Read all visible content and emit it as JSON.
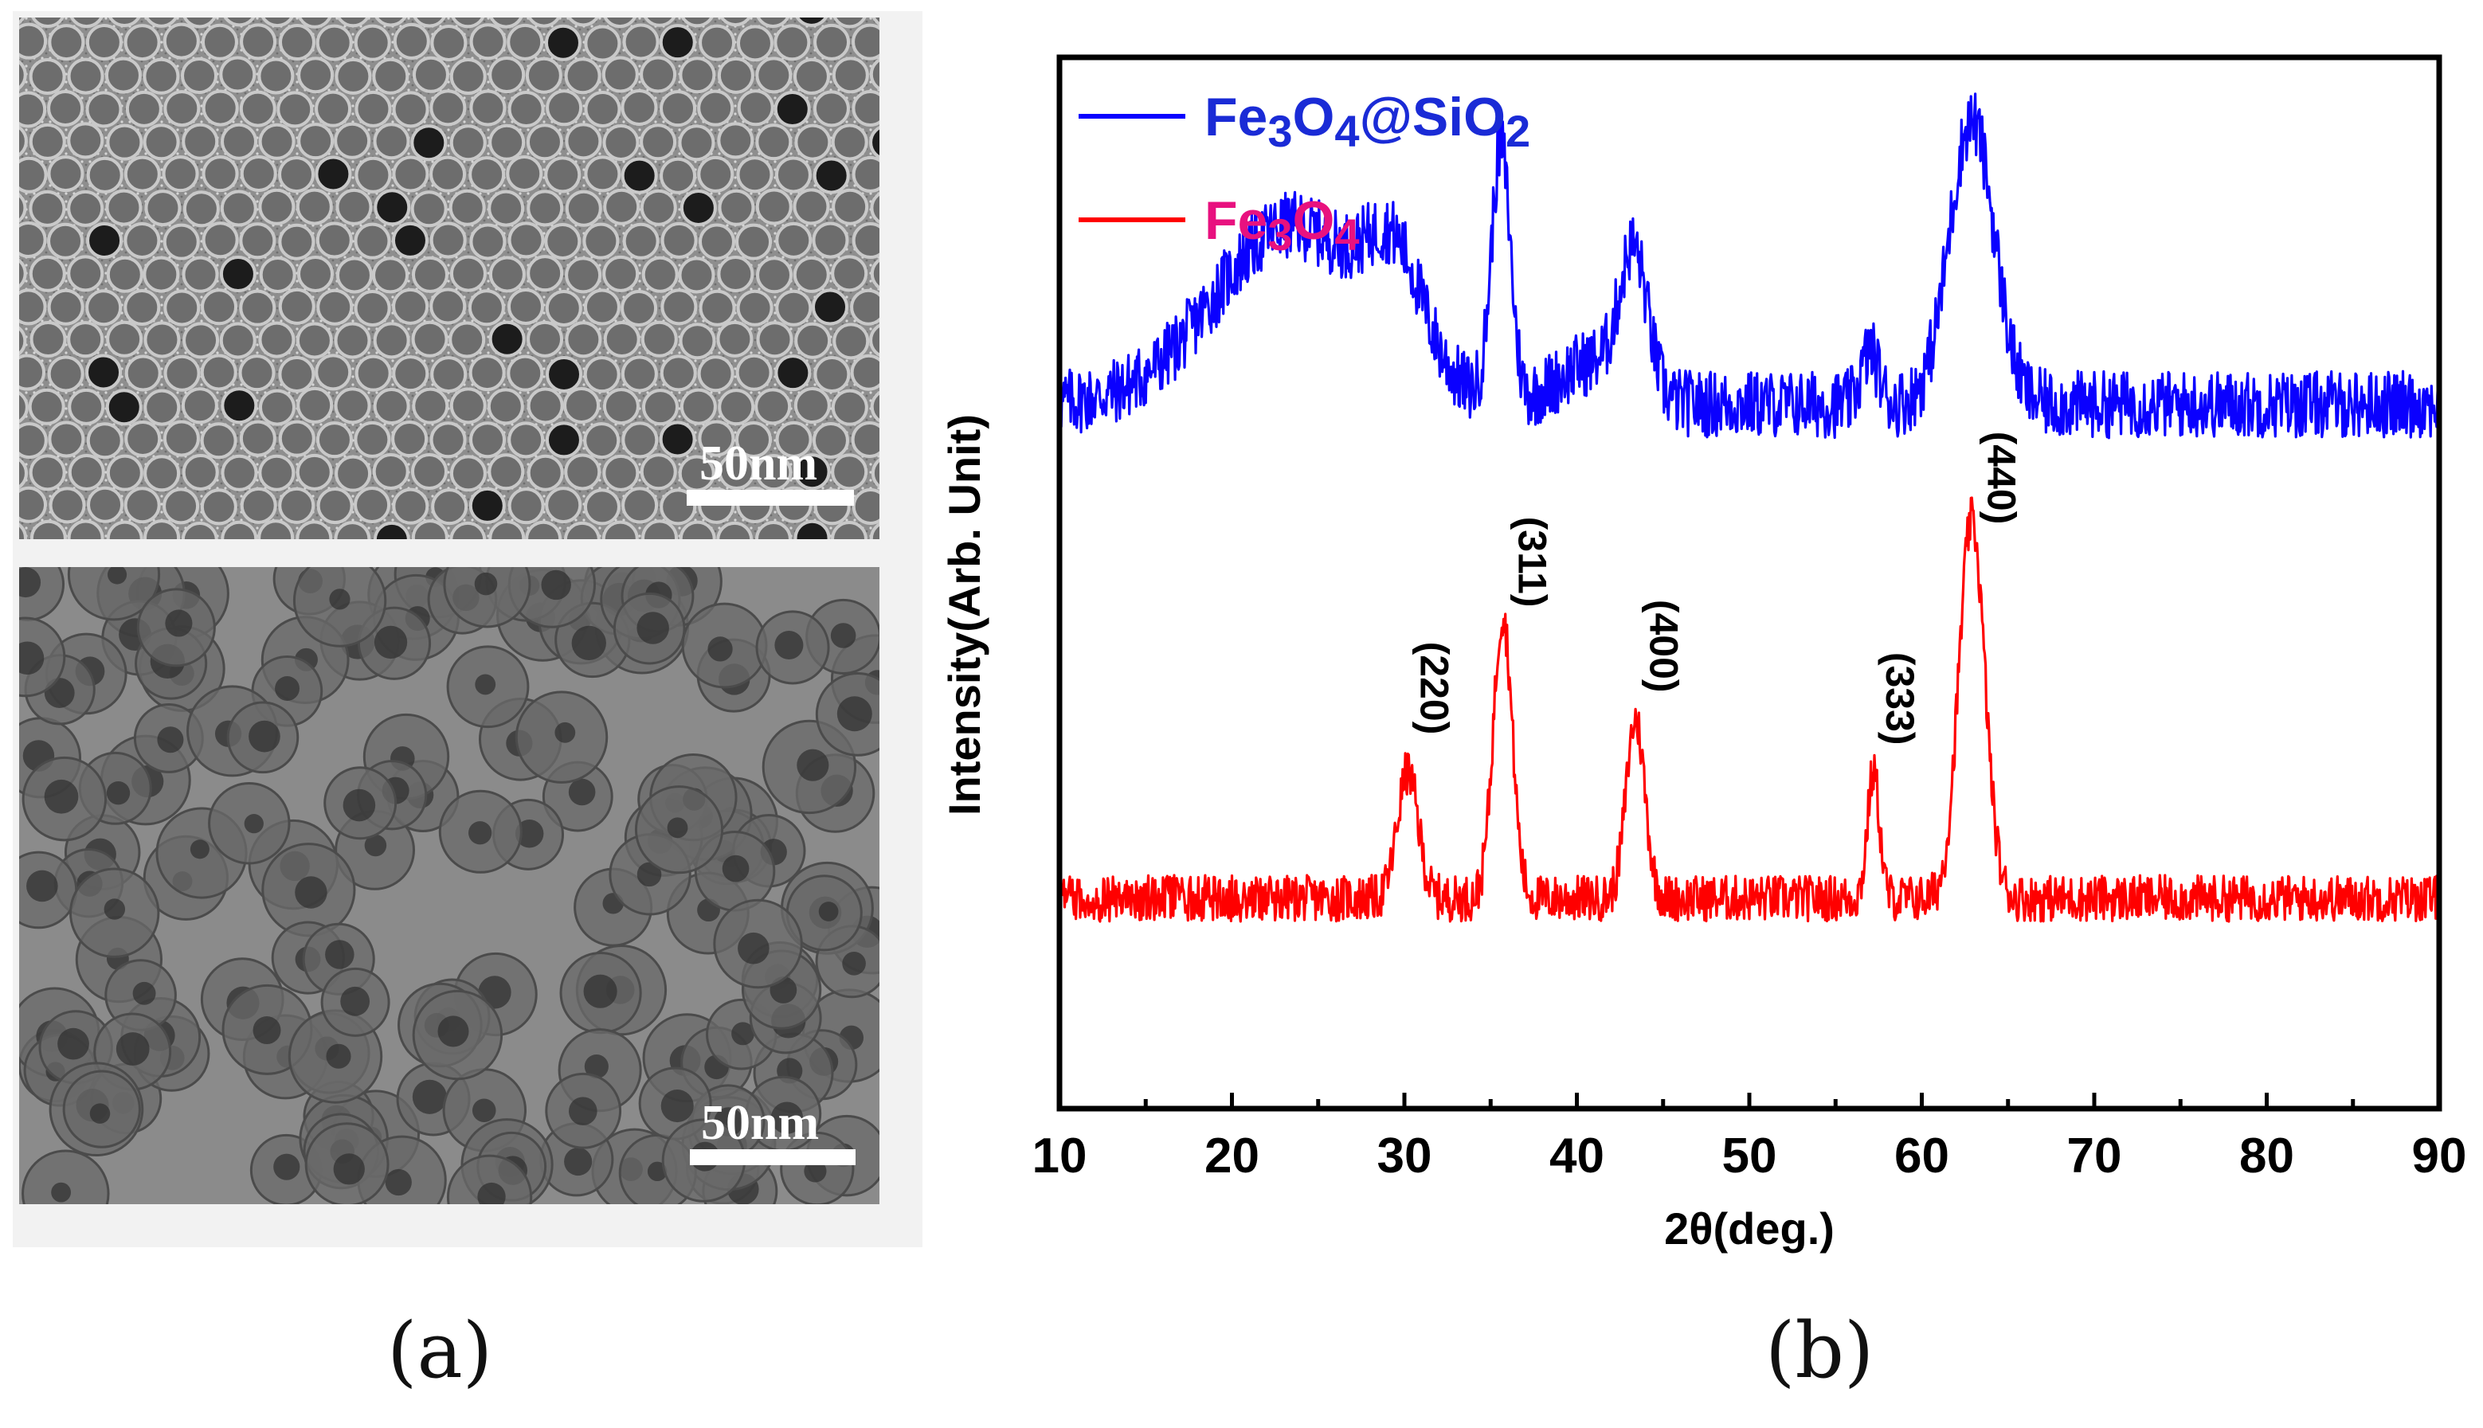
{
  "panels": {
    "a_label": "(a)",
    "b_label": "(b)"
  },
  "tem": {
    "top_scale": "50nm",
    "bottom_scale": "50nm"
  },
  "chart_data": {
    "type": "line",
    "xlabel": "2θ(deg.)",
    "ylabel": "Intensity(Arb. Unit)",
    "xlim": [
      10,
      90
    ],
    "ylim": [
      0,
      100
    ],
    "x_ticks": [
      10,
      20,
      30,
      40,
      50,
      60,
      70,
      80,
      90
    ],
    "x_ticks_labels": [
      "10",
      "20",
      "30",
      "40",
      "50",
      "60",
      "70",
      "80",
      "90"
    ],
    "y_ticks_shown": false,
    "legend_position": "top-left",
    "series": [
      {
        "name": "Fe3O4@SiO2",
        "label_base": "Fe",
        "label_sub1": "3",
        "label_mid": "O",
        "label_sub2": "4",
        "label_suffix": "@SiO",
        "label_sub3": "2",
        "color": "#0a00ff",
        "text_color": "#1a2bd6",
        "baseline": 67,
        "noise": 3.2,
        "features": [
          {
            "center": 23.5,
            "height": 17,
            "width": 4.5
          },
          {
            "center": 29.5,
            "height": 9,
            "width": 1.6
          },
          {
            "center": 35.6,
            "height": 24,
            "width": 0.55
          },
          {
            "center": 43.3,
            "height": 13,
            "width": 0.8
          },
          {
            "center": 41.0,
            "height": 4,
            "width": 2.0
          },
          {
            "center": 57.0,
            "height": 5,
            "width": 0.5
          },
          {
            "center": 62.9,
            "height": 27,
            "width": 1.3
          }
        ]
      },
      {
        "name": "Fe3O4",
        "label_base": "Fe",
        "label_sub1": "3",
        "label_mid": "O",
        "label_sub2": "4",
        "color": "#ff0000",
        "text_color": "#e8117f",
        "baseline": 20,
        "noise": 2.2,
        "features": [
          {
            "center": 30.2,
            "height": 12,
            "width": 0.6
          },
          {
            "center": 35.7,
            "height": 27,
            "width": 0.55
          },
          {
            "center": 43.4,
            "height": 17,
            "width": 0.55
          },
          {
            "center": 57.2,
            "height": 12,
            "width": 0.35
          },
          {
            "center": 62.9,
            "height": 36,
            "width": 0.75
          }
        ]
      }
    ],
    "annotations": [
      {
        "text": "(220)",
        "x": 30.2,
        "y": 40
      },
      {
        "text": "(311)",
        "x": 35.9,
        "y": 52
      },
      {
        "text": "(400)",
        "x": 43.5,
        "y": 44
      },
      {
        "text": "(333)",
        "x": 57.2,
        "y": 39
      },
      {
        "text": "(440)",
        "x": 63.1,
        "y": 60
      }
    ]
  }
}
